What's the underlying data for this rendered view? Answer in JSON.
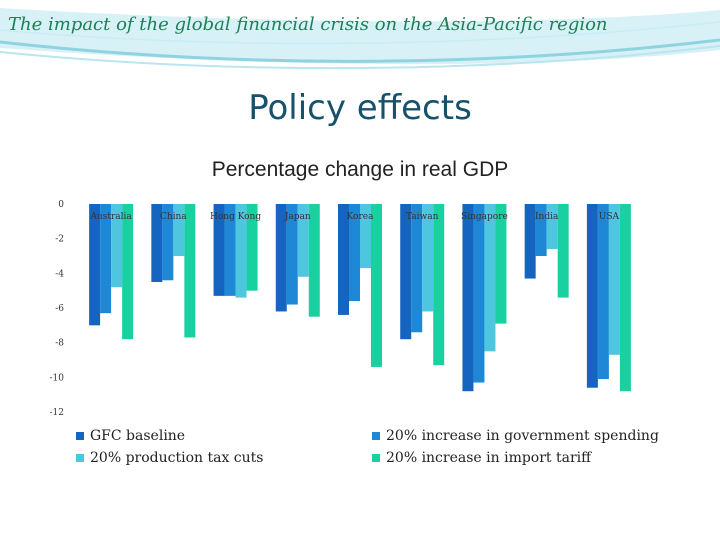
{
  "header": {
    "title": "The impact of the global financial crisis on the Asia-Pacific region"
  },
  "slide": {
    "title": "Policy effects"
  },
  "colors": {
    "accent_green": "#1f7f57",
    "title_blue": "#17516a",
    "band": "#8fd3e0"
  },
  "chart_data": {
    "type": "bar",
    "title": "Percentage change in real GDP",
    "xlabel": "",
    "ylabel": "",
    "categories": [
      "Australia",
      "China",
      "Hong Kong",
      "Japan",
      "Korea",
      "Taiwan",
      "Singapore",
      "India",
      "USA"
    ],
    "ylim": [
      -12,
      0
    ],
    "yticks": [
      0,
      -2,
      -4,
      -6,
      -8,
      -10,
      -12
    ],
    "grid": false,
    "legend_position": "bottom",
    "series": [
      {
        "name": "GFC baseline",
        "color": "#1565c0",
        "values": [
          -7.0,
          -4.5,
          -5.3,
          -6.2,
          -6.4,
          -7.8,
          -10.8,
          -4.3,
          -10.6
        ]
      },
      {
        "name": "20% increase in government spending",
        "color": "#1e88d6",
        "values": [
          -6.3,
          -4.4,
          -5.3,
          -5.8,
          -5.6,
          -7.4,
          -10.3,
          -3.0,
          -10.1
        ]
      },
      {
        "name": "20% production tax cuts",
        "color": "#4fc6e0",
        "values": [
          -4.8,
          -3.0,
          -5.4,
          -4.2,
          -3.7,
          -6.2,
          -8.5,
          -2.6,
          -8.7
        ]
      },
      {
        "name": "20% increase in import tariff",
        "color": "#19d1a0",
        "values": [
          -7.8,
          -7.7,
          -5.0,
          -6.5,
          -9.4,
          -9.3,
          -6.9,
          -5.4,
          -10.8
        ]
      }
    ]
  }
}
